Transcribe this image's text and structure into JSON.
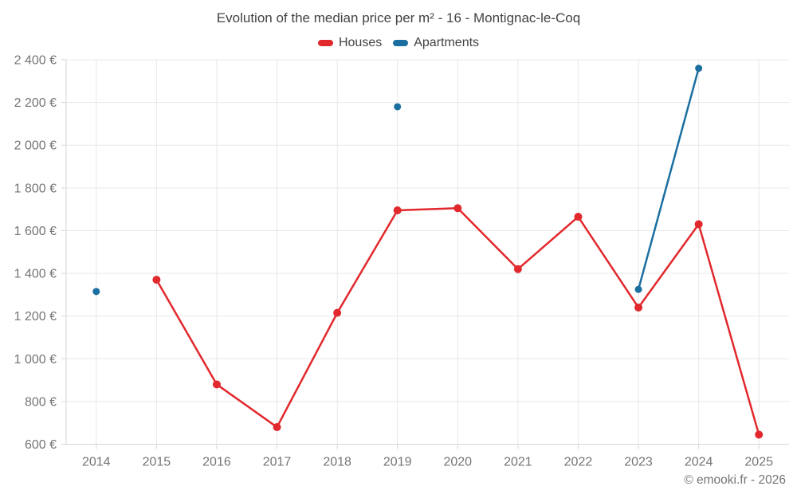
{
  "title": "Evolution of the median price per m² - 16 - Montignac-le-Coq",
  "footer": "© emooki.fr - 2026",
  "colors": {
    "houses": "#e1282d",
    "apartments": "#1a6fa0",
    "title_text": "#424242",
    "axis_text": "#757575"
  },
  "chart_data": {
    "type": "line",
    "title": "Evolution of the median price per m² - 16 - Montignac-le-Coq",
    "x": [
      2014,
      2015,
      2016,
      2017,
      2018,
      2019,
      2020,
      2021,
      2022,
      2023,
      2024,
      2025
    ],
    "x_tick_labels": [
      "2014",
      "2015",
      "2016",
      "2017",
      "2018",
      "2019",
      "2020",
      "2021",
      "2022",
      "2023",
      "2024",
      "2025"
    ],
    "series": [
      {
        "name": "Houses",
        "color": "#e1282d",
        "values": [
          null,
          1370,
          880,
          680,
          1215,
          1695,
          1705,
          1420,
          1665,
          1240,
          1630,
          645
        ]
      },
      {
        "name": "Apartments",
        "color": "#1a6fa0",
        "values": [
          1315,
          null,
          null,
          null,
          null,
          2180,
          null,
          null,
          null,
          1325,
          2360,
          null
        ]
      }
    ],
    "ylim": [
      600,
      2400
    ],
    "y_ticks": [
      {
        "value": 600,
        "label": "600 €"
      },
      {
        "value": 800,
        "label": "800 €"
      },
      {
        "value": 1000,
        "label": "1 000 €"
      },
      {
        "value": 1200,
        "label": "1 200 €"
      },
      {
        "value": 1400,
        "label": "1 400 €"
      },
      {
        "value": 1600,
        "label": "1 600 €"
      },
      {
        "value": 1800,
        "label": "1 800 €"
      },
      {
        "value": 2000,
        "label": "2 000 €"
      },
      {
        "value": 2200,
        "label": "2 200 €"
      },
      {
        "value": 2400,
        "label": "2 400 €"
      }
    ],
    "grid": true,
    "legend_position": "top"
  }
}
